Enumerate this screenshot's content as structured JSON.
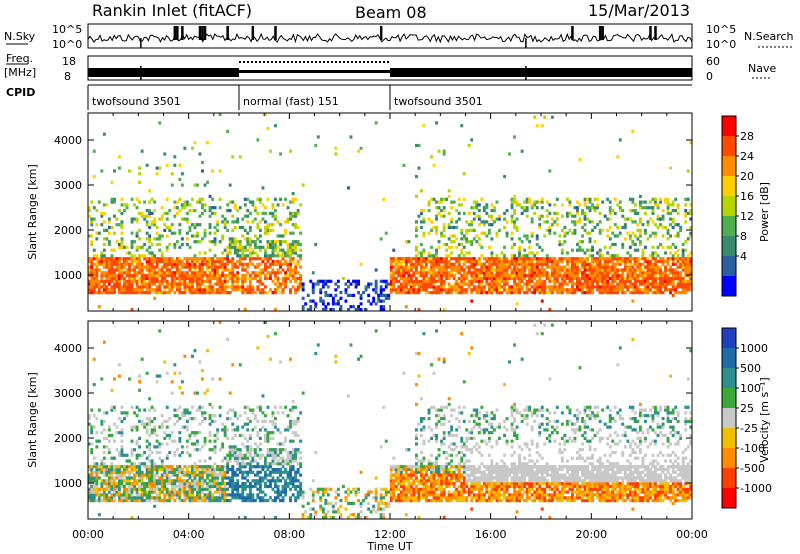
{
  "header": {
    "station": "Rankin Inlet (fitACF)",
    "beam": "Beam 08",
    "date": "15/Mar/2013"
  },
  "panels": {
    "nsky_label": "N.Sky",
    "nsky_ticks": [
      "10^5",
      "10^0"
    ],
    "nsearch_label": "N.Search",
    "nsearch_ticks": [
      "10^5",
      "10^0"
    ],
    "freq_label": "Freq.",
    "freq_unit": "[MHz]",
    "freq_ticks": [
      "18",
      "8"
    ],
    "nave_label": "Nave",
    "nave_ticks": [
      "60",
      "0"
    ],
    "cpid_label": "CPID",
    "cpid_segments": [
      {
        "start": 0,
        "end": 6,
        "label": "twofsound 3501"
      },
      {
        "start": 6,
        "end": 12,
        "label": "normal (fast) 151"
      },
      {
        "start": 12,
        "end": 24,
        "label": "twofsound 3501"
      }
    ]
  },
  "chart_data": [
    {
      "type": "heatmap",
      "name": "power",
      "ylabel": "Slant Range [km]",
      "ylim": [
        200,
        4600
      ],
      "yticks": [
        "1000",
        "2000",
        "3000",
        "4000"
      ],
      "xlim": [
        0,
        24
      ],
      "colorbar": {
        "label": "Power [dB]",
        "ticks": [
          "28",
          "24",
          "20",
          "16",
          "12",
          "8",
          "4"
        ],
        "colors": [
          "#ff0000",
          "#ff4800",
          "#ff8c00",
          "#ffd000",
          "#b5d400",
          "#4db04d",
          "#3a8a6e",
          "#2a5fa0",
          "#0000ff"
        ]
      }
    },
    {
      "type": "heatmap",
      "name": "velocity",
      "ylabel": "Slant Range [km]",
      "ylim": [
        200,
        4600
      ],
      "yticks": [
        "1000",
        "2000",
        "3000",
        "4000"
      ],
      "xlim": [
        0,
        24
      ],
      "colorbar": {
        "label": "Velocity [m s⁻¹]",
        "ticks": [
          "1000",
          "500",
          "100",
          "25",
          "-25",
          "-100",
          "-500",
          "-1000"
        ],
        "colors": [
          "#2040c0",
          "#1f6ba8",
          "#2e8f8f",
          "#3aa83a",
          "#c8c8c8",
          "#f0c000",
          "#ff8c00",
          "#ff4000",
          "#ff0000"
        ]
      }
    }
  ],
  "xaxis": {
    "label": "Time UT",
    "ticks": [
      "00:00",
      "04:00",
      "08:00",
      "12:00",
      "16:00",
      "20:00",
      "00:00"
    ]
  }
}
